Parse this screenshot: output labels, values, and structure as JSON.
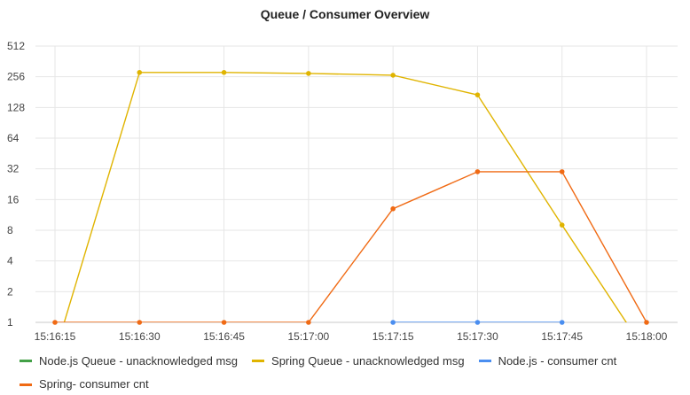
{
  "chart_data": {
    "type": "line",
    "title": "Queue / Consumer Overview",
    "xlabel": "",
    "ylabel": "",
    "yscale": "log2",
    "ylim": [
      1,
      512
    ],
    "y_ticks": [
      "1",
      "2",
      "4",
      "8",
      "16",
      "32",
      "64",
      "128",
      "256",
      "512"
    ],
    "x": [
      "15:16:15",
      "15:16:30",
      "15:16:45",
      "15:17:00",
      "15:17:15",
      "15:17:30",
      "15:17:45",
      "15:18:00"
    ],
    "grid": true,
    "legend_position": "bottom",
    "series": [
      {
        "name": "Node.js Queue - unacknowledged msg",
        "color": "#43a047",
        "values": [
          null,
          null,
          null,
          null,
          null,
          null,
          null,
          null
        ]
      },
      {
        "name": "Spring Queue - unacknowledged msg",
        "color": "#e0b400",
        "values": [
          0,
          282,
          282,
          276,
          265,
          170,
          9,
          0
        ]
      },
      {
        "name": "Node.js - consumer cnt",
        "color": "#4a8ef0",
        "values": [
          null,
          null,
          null,
          null,
          1,
          1,
          1,
          null
        ]
      },
      {
        "name": "Spring- consumer cnt",
        "color": "#f06a14",
        "values": [
          1,
          1,
          1,
          1,
          13,
          30,
          30,
          1
        ]
      }
    ]
  }
}
